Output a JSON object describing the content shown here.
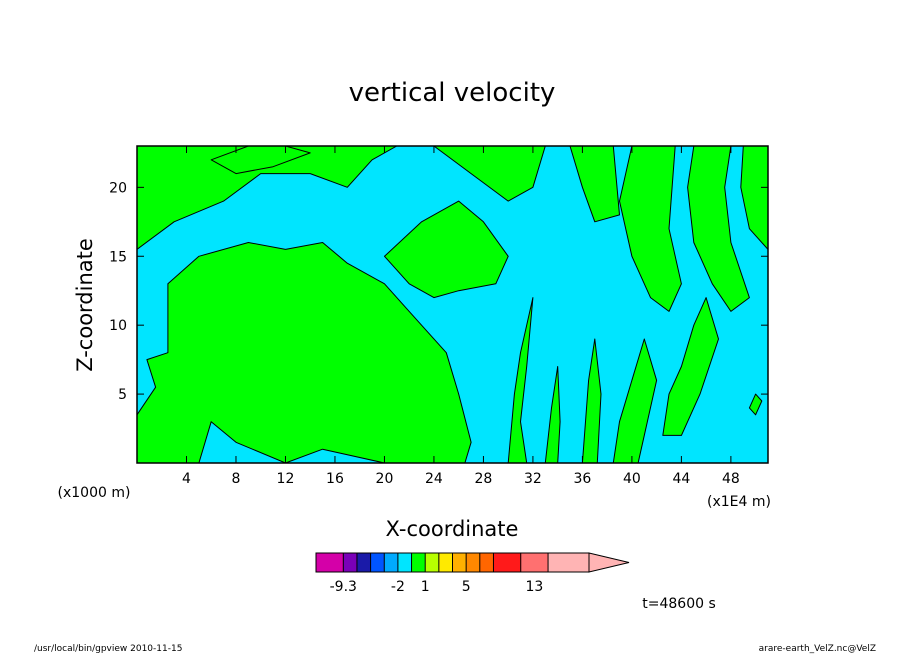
{
  "chart_data": {
    "type": "heatmap",
    "title": "vertical velocity",
    "xlabel": "X-coordinate",
    "ylabel": "Z-coordinate",
    "x_unit_left": "(x1000 m)",
    "x_unit_right": "(x1E4 m)",
    "xlim": [
      0,
      51
    ],
    "ylim": [
      0,
      23
    ],
    "x_ticks": [
      4,
      8,
      12,
      16,
      20,
      24,
      28,
      32,
      36,
      40,
      44,
      48
    ],
    "y_ticks": [
      5,
      10,
      15,
      20
    ],
    "colors": {
      "positive_fill": "#00ff00",
      "negative_fill": "#00e5ff",
      "contour_line": "#000000"
    },
    "zero_contours": [
      {
        "kind": "positive",
        "points": [
          [
            0,
            3.5
          ],
          [
            1.5,
            5.5
          ],
          [
            0.8,
            7.5
          ],
          [
            2.5,
            8
          ],
          [
            2.5,
            13
          ],
          [
            5,
            15
          ],
          [
            9,
            16
          ],
          [
            12,
            15.5
          ],
          [
            15,
            16
          ],
          [
            17,
            14.5
          ],
          [
            20,
            13
          ],
          [
            22,
            11
          ],
          [
            25,
            8
          ],
          [
            26,
            5
          ],
          [
            27,
            1.5
          ],
          [
            26.5,
            0
          ],
          [
            20,
            0
          ],
          [
            15,
            1
          ],
          [
            12,
            0
          ],
          [
            8,
            1.5
          ],
          [
            6,
            3
          ],
          [
            5,
            0
          ],
          [
            2,
            0
          ],
          [
            0,
            0
          ]
        ]
      },
      {
        "kind": "positive",
        "points": [
          [
            0,
            15.5
          ],
          [
            3,
            17.5
          ],
          [
            7,
            19
          ],
          [
            10,
            21
          ],
          [
            14,
            21
          ],
          [
            17,
            20
          ],
          [
            19,
            22
          ],
          [
            21,
            23
          ],
          [
            0,
            23
          ]
        ]
      },
      {
        "kind": "positive",
        "points": [
          [
            6,
            22
          ],
          [
            9,
            23
          ],
          [
            12,
            23
          ],
          [
            14,
            22.5
          ],
          [
            11,
            21.5
          ],
          [
            8,
            21
          ]
        ]
      },
      {
        "kind": "positive",
        "points": [
          [
            20,
            15
          ],
          [
            23,
            17.5
          ],
          [
            26,
            19
          ],
          [
            28,
            17.5
          ],
          [
            30,
            15
          ],
          [
            29,
            13
          ],
          [
            26,
            12.5
          ],
          [
            24,
            12
          ],
          [
            22,
            13
          ]
        ]
      },
      {
        "kind": "positive",
        "points": [
          [
            24,
            23
          ],
          [
            27,
            21
          ],
          [
            30,
            19
          ],
          [
            32,
            20
          ],
          [
            33,
            23
          ]
        ]
      },
      {
        "kind": "positive",
        "points": [
          [
            35,
            23
          ],
          [
            36,
            20
          ],
          [
            37,
            17.5
          ],
          [
            39,
            18
          ],
          [
            38.5,
            23
          ]
        ]
      },
      {
        "kind": "positive",
        "points": [
          [
            40,
            23
          ],
          [
            39,
            19
          ],
          [
            40,
            15
          ],
          [
            41.5,
            12
          ],
          [
            43,
            11
          ],
          [
            44,
            13
          ],
          [
            43,
            17
          ],
          [
            43.5,
            23
          ]
        ]
      },
      {
        "kind": "positive",
        "points": [
          [
            45,
            23
          ],
          [
            44.5,
            20
          ],
          [
            45,
            16
          ],
          [
            46.5,
            13
          ],
          [
            48,
            11
          ],
          [
            49.5,
            12
          ],
          [
            48,
            16
          ],
          [
            47.5,
            20
          ],
          [
            48,
            23
          ]
        ]
      },
      {
        "kind": "positive",
        "points": [
          [
            49,
            23
          ],
          [
            48.8,
            20
          ],
          [
            49.5,
            17
          ],
          [
            51,
            15.5
          ],
          [
            51,
            23
          ]
        ]
      },
      {
        "kind": "positive",
        "points": [
          [
            30,
            0
          ],
          [
            30.5,
            5
          ],
          [
            31,
            8
          ],
          [
            32,
            12
          ],
          [
            31.5,
            7
          ],
          [
            31,
            3
          ],
          [
            31.5,
            0
          ]
        ]
      },
      {
        "kind": "positive",
        "points": [
          [
            33,
            0
          ],
          [
            33.5,
            4
          ],
          [
            34,
            7
          ],
          [
            34.2,
            3
          ],
          [
            34,
            0
          ]
        ]
      },
      {
        "kind": "positive",
        "points": [
          [
            36,
            0
          ],
          [
            36.5,
            6
          ],
          [
            37,
            9
          ],
          [
            37.5,
            5
          ],
          [
            37.2,
            0
          ]
        ]
      },
      {
        "kind": "positive",
        "points": [
          [
            38.5,
            0
          ],
          [
            39,
            3
          ],
          [
            40,
            6
          ],
          [
            41,
            9
          ],
          [
            42,
            6
          ],
          [
            41,
            2
          ],
          [
            40.5,
            0
          ]
        ]
      },
      {
        "kind": "positive",
        "points": [
          [
            42.5,
            2
          ],
          [
            43,
            5
          ],
          [
            44,
            7
          ],
          [
            45,
            10
          ],
          [
            46,
            12
          ],
          [
            47,
            9
          ],
          [
            45.5,
            5
          ],
          [
            44,
            2
          ]
        ]
      },
      {
        "kind": "positive",
        "points": [
          [
            49.5,
            4
          ],
          [
            50,
            5
          ],
          [
            50.5,
            4.5
          ],
          [
            50,
            3.5
          ]
        ]
      }
    ],
    "colorbar": {
      "colors": [
        "#d400a8",
        "#d400a8",
        "#7a00b8",
        "#1a1aa8",
        "#0055ff",
        "#00aaff",
        "#00e5ff",
        "#00ff00",
        "#b8ff00",
        "#ffea00",
        "#ffb000",
        "#ff8800",
        "#ff6600",
        "#ff1a1a",
        "#ff1a1a",
        "#ff7070",
        "#ff7070",
        "#ffb4b4",
        "#ffb4b4",
        "#ffb4b4"
      ],
      "labels": [
        "-9.3",
        "-2",
        "1",
        "5",
        "13"
      ],
      "extend": "max"
    }
  },
  "annotations": {
    "time": "t=48600 s",
    "footer_left": "/usr/local/bin/gpview  2010-11-15",
    "footer_right": "arare-earth_VelZ.nc@VelZ"
  }
}
